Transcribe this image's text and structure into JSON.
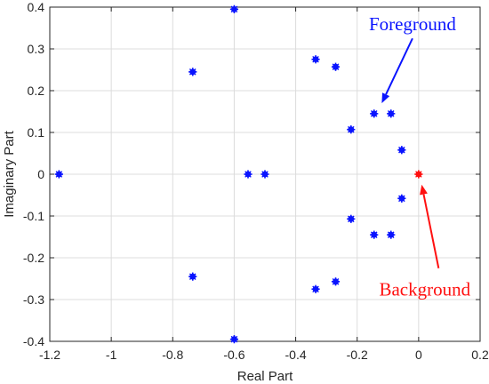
{
  "chart_data": {
    "type": "scatter",
    "xlabel": "Real Part",
    "ylabel": "Imaginary Part",
    "xlim": [
      -1.2,
      0.2
    ],
    "ylim": [
      -0.4,
      0.4
    ],
    "xticks": [
      -1.2,
      -1,
      -0.8,
      -0.6,
      -0.4,
      -0.2,
      0,
      0.2
    ],
    "xtick_labels": [
      "-1.2",
      "-1",
      "-0.8",
      "-0.6",
      "-0.4",
      "-0.2",
      "0",
      "0.2"
    ],
    "yticks": [
      -0.4,
      -0.3,
      -0.2,
      -0.1,
      0,
      0.1,
      0.2,
      0.3,
      0.4
    ],
    "ytick_labels": [
      "-0.4",
      "-0.3",
      "-0.2",
      "-0.1",
      "0",
      "0.1",
      "0.2",
      "0.3",
      "0.4"
    ],
    "grid": true,
    "series": [
      {
        "color": "#0a14ff",
        "points": [
          [
            -1.17,
            0
          ],
          [
            -0.735,
            0.245
          ],
          [
            -0.735,
            -0.245
          ],
          [
            -0.6,
            0.395
          ],
          [
            -0.6,
            -0.395
          ],
          [
            -0.555,
            0
          ],
          [
            -0.5,
            0
          ],
          [
            -0.335,
            0.275
          ],
          [
            -0.335,
            -0.275
          ],
          [
            -0.27,
            0.257
          ],
          [
            -0.27,
            -0.257
          ],
          [
            -0.22,
            0.107
          ],
          [
            -0.22,
            -0.107
          ],
          [
            -0.145,
            0.145
          ],
          [
            -0.145,
            -0.145
          ],
          [
            -0.09,
            0.145
          ],
          [
            -0.09,
            -0.145
          ],
          [
            -0.055,
            0.058
          ],
          [
            -0.055,
            -0.058
          ]
        ]
      },
      {
        "color": "#ff1010",
        "points": [
          [
            0,
            0
          ]
        ]
      }
    ],
    "annotations": [
      {
        "text": "Foreground",
        "color": "#0a14ff",
        "text_at": [
          -0.02,
          0.345
        ],
        "arrow_from": [
          -0.02,
          0.325
        ],
        "arrow_to": [
          -0.12,
          0.17
        ]
      },
      {
        "text": "Background",
        "color": "#ff1010",
        "text_at": [
          0.02,
          -0.29
        ],
        "arrow_from": [
          0.065,
          -0.225
        ],
        "arrow_to": [
          0.01,
          -0.025
        ]
      }
    ]
  }
}
